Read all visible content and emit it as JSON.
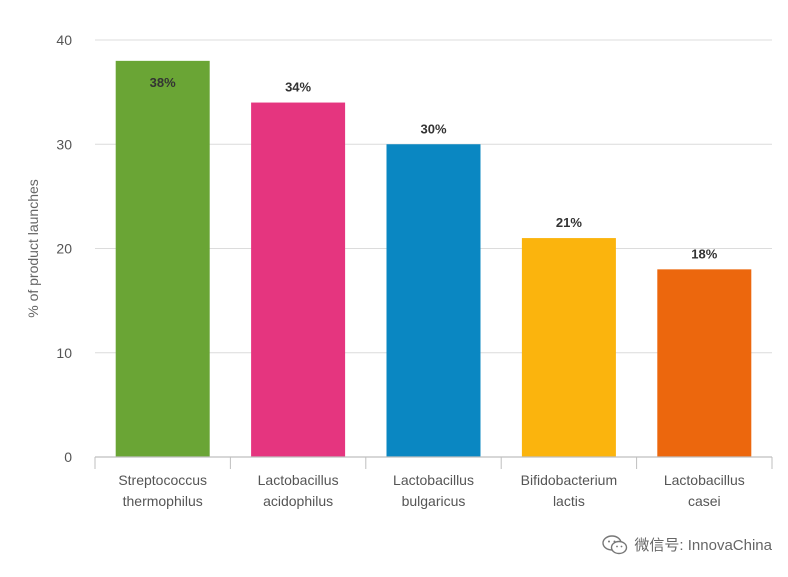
{
  "chart_data": {
    "type": "bar",
    "title": "",
    "xlabel": "",
    "ylabel": "% of product launches",
    "ylim": [
      0,
      40
    ],
    "yticks": [
      0,
      10,
      20,
      30,
      40
    ],
    "grid": true,
    "categories": [
      [
        "Streptococcus",
        "thermophilus"
      ],
      [
        "Lactobacillus",
        "acidophilus"
      ],
      [
        "Lactobacillus",
        "bulgaricus"
      ],
      [
        "Bifidobacterium",
        "lactis"
      ],
      [
        "Lactobacillus",
        "casei"
      ]
    ],
    "values": [
      38,
      34,
      30,
      21,
      18
    ],
    "data_labels": [
      "38%",
      "34%",
      "30%",
      "21%",
      "18%"
    ],
    "colors": [
      "#6aa535",
      "#e5357f",
      "#0a87c2",
      "#fbb40d",
      "#ec670d"
    ]
  },
  "watermark": {
    "icon": "wechat-icon",
    "text": "微信号: InnovaChina"
  }
}
